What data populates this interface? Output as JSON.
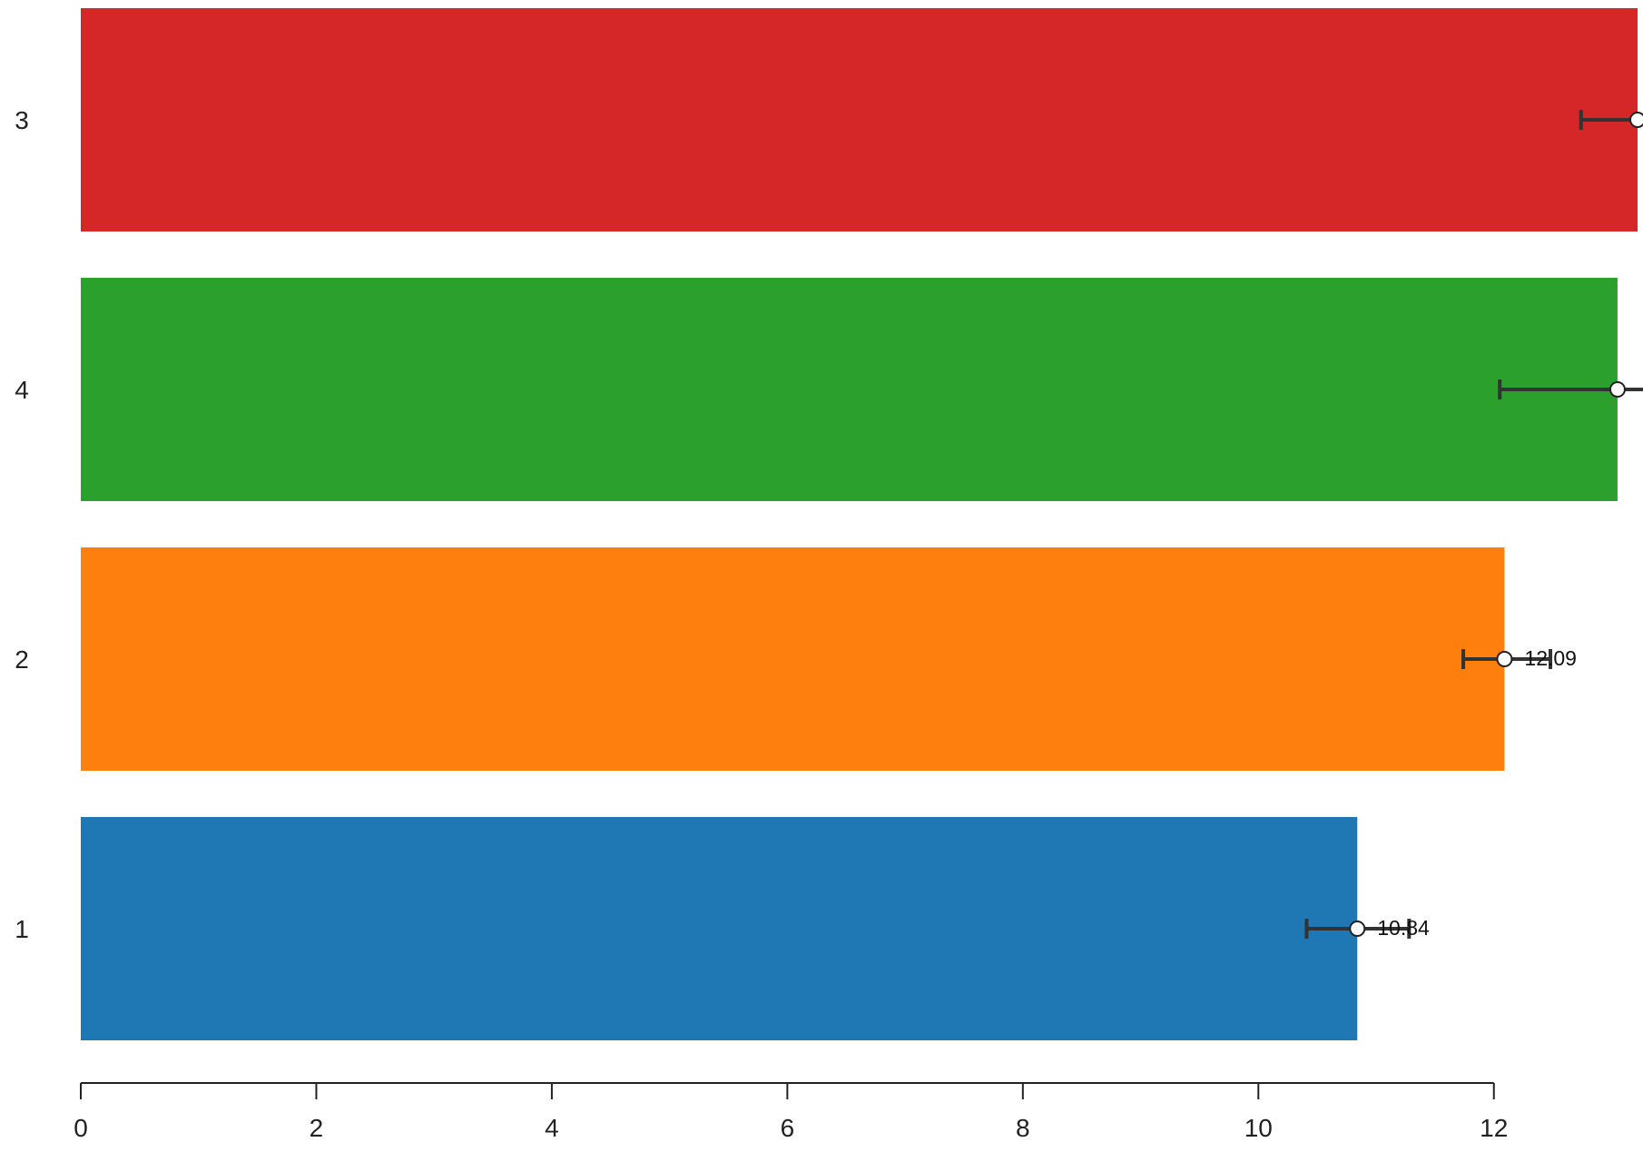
{
  "chart_data": {
    "type": "bar",
    "orientation": "horizontal",
    "categories": [
      "3",
      "4",
      "2",
      "1"
    ],
    "values": [
      13.22,
      13.05,
      12.09,
      10.84
    ],
    "error_low": [
      12.74,
      12.05,
      11.74,
      10.41
    ],
    "error_high": [
      13.6,
      13.55,
      12.48,
      11.28
    ],
    "value_labels": [
      "",
      "",
      "12.09",
      "10.84"
    ],
    "colors": [
      "#d62728",
      "#2ca02c",
      "#ff7f0e",
      "#1f77b4"
    ],
    "xlim": [
      0,
      13.22
    ],
    "x_ticks": [
      "0",
      "2",
      "4",
      "6",
      "8",
      "10",
      "12"
    ],
    "title": "",
    "xlabel": "",
    "ylabel": "",
    "grid": false,
    "legend": "none"
  }
}
